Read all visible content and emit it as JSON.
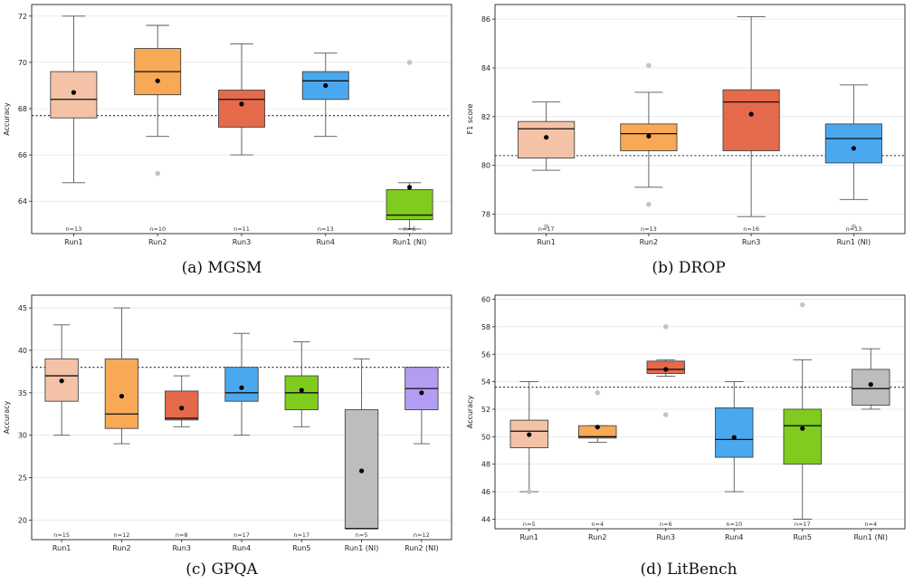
{
  "chart_data": [
    {
      "type": "box",
      "title": "(a) MGSM",
      "ylabel": "Accuracy",
      "ylim": [
        62.6,
        72.5
      ],
      "yticks": [
        64,
        66,
        68,
        70,
        72
      ],
      "ref_line": 67.7,
      "categories": [
        "Run1",
        "Run2",
        "Run3",
        "Run4",
        "Run1 (NI)"
      ],
      "colors": [
        "#f4c3a7",
        "#f7a955",
        "#e5694b",
        "#4aa8ef",
        "#7fcc1e"
      ],
      "boxes": [
        {
          "label": "Run1",
          "q1": 67.6,
          "median": 68.4,
          "q3": 69.6,
          "whislo": 64.8,
          "whishi": 72.0,
          "mean": 68.7,
          "outliers": [],
          "n": "n=13"
        },
        {
          "label": "Run2",
          "q1": 68.6,
          "median": 69.6,
          "q3": 70.6,
          "whislo": 66.8,
          "whishi": 71.6,
          "mean": 69.2,
          "outliers": [
            65.2
          ],
          "n": "n=10"
        },
        {
          "label": "Run3",
          "q1": 67.2,
          "median": 68.4,
          "q3": 68.8,
          "whislo": 66.0,
          "whishi": 70.8,
          "mean": 68.2,
          "outliers": [],
          "n": "n=11"
        },
        {
          "label": "Run4",
          "q1": 68.4,
          "median": 69.2,
          "q3": 69.6,
          "whislo": 66.8,
          "whishi": 70.4,
          "mean": 69.0,
          "outliers": [],
          "n": "n=13"
        },
        {
          "label": "Run1 (NI)",
          "q1": 63.2,
          "median": 63.4,
          "q3": 64.5,
          "whislo": 62.8,
          "whishi": 64.8,
          "mean": 64.6,
          "outliers": [
            70.0
          ],
          "n": "n=6"
        }
      ]
    },
    {
      "type": "box",
      "title": "(b) DROP",
      "ylabel": "F1 score",
      "ylim": [
        77.2,
        86.6
      ],
      "yticks": [
        78,
        80,
        82,
        84,
        86
      ],
      "ref_line": 80.4,
      "categories": [
        "Run1",
        "Run2",
        "Run3",
        "Run1 (NI)"
      ],
      "colors": [
        "#f4c3a7",
        "#f7a955",
        "#e5694b",
        "#4aa8ef"
      ],
      "boxes": [
        {
          "label": "Run1",
          "q1": 80.3,
          "median": 81.5,
          "q3": 81.8,
          "whislo": 79.8,
          "whishi": 82.6,
          "mean": 81.15,
          "outliers": [
            77.5
          ],
          "n": "n=17"
        },
        {
          "label": "Run2",
          "q1": 80.6,
          "median": 81.3,
          "q3": 81.7,
          "whislo": 79.1,
          "whishi": 83.0,
          "mean": 81.2,
          "outliers": [
            84.1,
            78.4
          ],
          "n": "n=13"
        },
        {
          "label": "Run3",
          "q1": 80.6,
          "median": 82.6,
          "q3": 83.1,
          "whislo": 77.9,
          "whishi": 86.1,
          "mean": 82.1,
          "outliers": [],
          "n": "n=16"
        },
        {
          "label": "Run1 (NI)",
          "q1": 80.1,
          "median": 81.1,
          "q3": 81.7,
          "whislo": 78.6,
          "whishi": 83.3,
          "mean": 80.7,
          "outliers": [
            77.5
          ],
          "n": "n=13"
        }
      ]
    },
    {
      "type": "box",
      "title": "(c) GPQA",
      "ylabel": "Accuracy",
      "ylim": [
        17.7,
        46.5
      ],
      "yticks": [
        20,
        25,
        30,
        35,
        40,
        45
      ],
      "ref_line": 38.0,
      "categories": [
        "Run1",
        "Run2",
        "Run3",
        "Run4",
        "Run5",
        "Run1 (NI)",
        "Run2 (NI)"
      ],
      "colors": [
        "#f4c3a7",
        "#f7a955",
        "#e5694b",
        "#4aa8ef",
        "#7fcc1e",
        "#bdbdbd",
        "#b39df2"
      ],
      "boxes": [
        {
          "label": "Run1",
          "q1": 34,
          "median": 37,
          "q3": 39,
          "whislo": 30,
          "whishi": 43,
          "mean": 36.4,
          "outliers": [],
          "n": "n=15"
        },
        {
          "label": "Run2",
          "q1": 30.8,
          "median": 32.5,
          "q3": 39,
          "whislo": 29,
          "whishi": 45,
          "mean": 34.6,
          "outliers": [],
          "n": "n=12"
        },
        {
          "label": "Run3",
          "q1": 31.8,
          "median": 32,
          "q3": 35.2,
          "whislo": 31,
          "whishi": 37,
          "mean": 33.2,
          "outliers": [],
          "n": "n=8"
        },
        {
          "label": "Run4",
          "q1": 34,
          "median": 35,
          "q3": 38,
          "whislo": 30,
          "whishi": 42,
          "mean": 35.6,
          "outliers": [],
          "n": "n=17"
        },
        {
          "label": "Run5",
          "q1": 33,
          "median": 35,
          "q3": 37,
          "whislo": 31,
          "whishi": 41,
          "mean": 35.3,
          "outliers": [],
          "n": "n=17"
        },
        {
          "label": "Run1 (NI)",
          "q1": 19,
          "median": 19,
          "q3": 33,
          "whislo": 19,
          "whishi": 39,
          "mean": 25.8,
          "outliers": [],
          "n": "n=5"
        },
        {
          "label": "Run2 (NI)",
          "q1": 33,
          "median": 35.5,
          "q3": 38,
          "whislo": 29,
          "whishi": 38,
          "mean": 35.0,
          "outliers": [],
          "n": "n=12"
        }
      ]
    },
    {
      "type": "box",
      "title": "(d) LitBench",
      "ylabel": "Accuracy",
      "ylim": [
        43.3,
        60.3
      ],
      "yticks": [
        44,
        46,
        48,
        50,
        52,
        54,
        56,
        58,
        60
      ],
      "ref_line": 53.6,
      "categories": [
        "Run1",
        "Run2",
        "Run3",
        "Run4",
        "Run5",
        "Run1 (NI)"
      ],
      "colors": [
        "#f4c3a7",
        "#f7a955",
        "#e5694b",
        "#4aa8ef",
        "#7fcc1e",
        "#bdbdbd"
      ],
      "boxes": [
        {
          "label": "Run1",
          "q1": 49.2,
          "median": 50.4,
          "q3": 51.2,
          "whislo": 46,
          "whishi": 54,
          "mean": 50.15,
          "outliers": [
            46
          ],
          "n": "n=5"
        },
        {
          "label": "Run2",
          "q1": 49.9,
          "median": 50,
          "q3": 50.8,
          "whislo": 49.6,
          "whishi": 50.8,
          "mean": 50.7,
          "outliers": [
            53.2
          ],
          "n": "n=4"
        },
        {
          "label": "Run3",
          "q1": 54.6,
          "median": 54.9,
          "q3": 55.5,
          "whislo": 54.4,
          "whishi": 55.6,
          "mean": 54.9,
          "outliers": [
            58,
            51.6
          ],
          "n": "n=6"
        },
        {
          "label": "Run4",
          "q1": 48.5,
          "median": 49.8,
          "q3": 52.1,
          "whislo": 46,
          "whishi": 54,
          "mean": 49.95,
          "outliers": [],
          "n": "n=10"
        },
        {
          "label": "Run5",
          "q1": 48,
          "median": 50.8,
          "q3": 52,
          "whislo": 44,
          "whishi": 55.6,
          "mean": 50.6,
          "outliers": [
            59.6
          ],
          "n": "n=17"
        },
        {
          "label": "Run1 (NI)",
          "q1": 52.3,
          "median": 53.5,
          "q3": 54.9,
          "whislo": 52,
          "whishi": 56.4,
          "mean": 53.8,
          "outliers": [],
          "n": "n=4"
        }
      ]
    }
  ]
}
